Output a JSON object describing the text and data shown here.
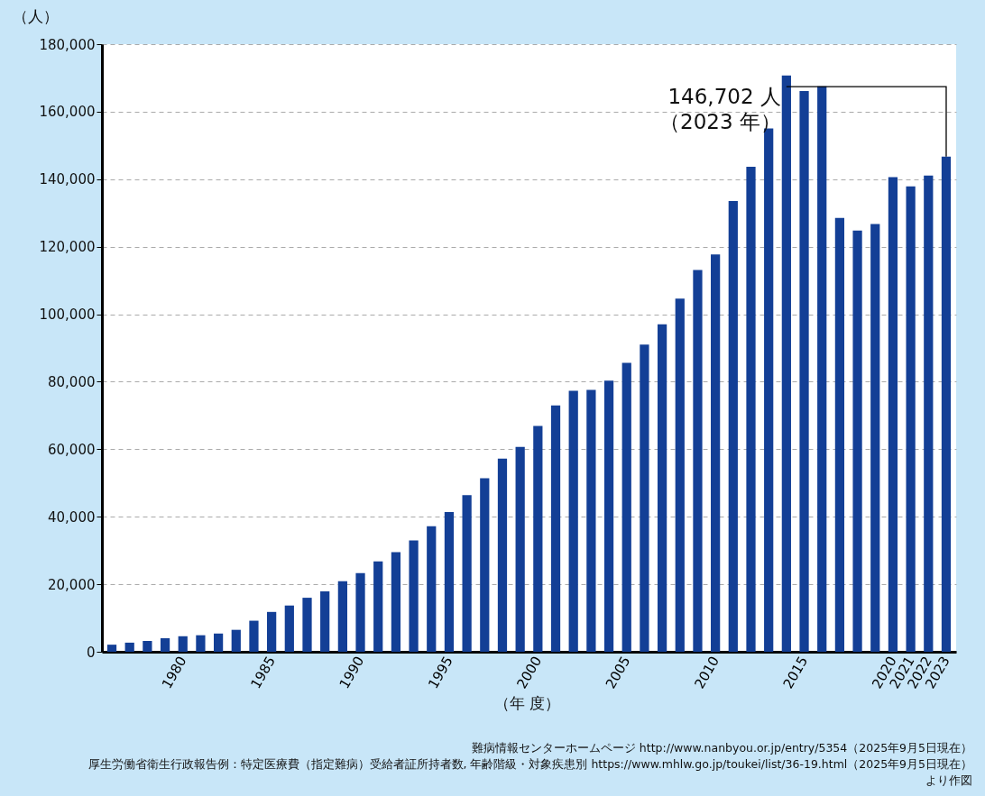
{
  "chart_data": {
    "type": "bar",
    "ylabel": "（人）",
    "xlabel": "（年 度）",
    "categories": [
      null,
      null,
      null,
      null,
      "1980",
      null,
      null,
      null,
      null,
      "1985",
      null,
      null,
      null,
      null,
      "1990",
      null,
      null,
      null,
      null,
      "1995",
      null,
      null,
      null,
      null,
      "2000",
      null,
      null,
      null,
      null,
      "2005",
      null,
      null,
      null,
      null,
      "2010",
      null,
      null,
      null,
      null,
      "2015",
      null,
      null,
      null,
      null,
      "2020",
      "2021",
      "2022",
      "2023"
    ],
    "values": [
      2100,
      2700,
      3200,
      4000,
      4600,
      4900,
      5400,
      6500,
      9200,
      11800,
      13700,
      16000,
      17900,
      20900,
      23300,
      26800,
      29500,
      33000,
      37200,
      41400,
      46400,
      51400,
      57200,
      60700,
      66900,
      73000,
      77300,
      77600,
      80300,
      85600,
      91000,
      97000,
      104600,
      113100,
      117700,
      133500,
      143700,
      155000,
      170700,
      166100,
      167500,
      128500,
      124800,
      126700,
      140600,
      137900,
      141100,
      146702
    ],
    "color": "#133f96",
    "ylim": [
      0,
      180000
    ],
    "yticks": [
      {
        "value": 0,
        "label": "0"
      },
      {
        "value": 20000,
        "label": "20,000"
      },
      {
        "value": 40000,
        "label": "40,000"
      },
      {
        "value": 60000,
        "label": "60,000"
      },
      {
        "value": 80000,
        "label": "80,000"
      },
      {
        "value": 100000,
        "label": "100,000"
      },
      {
        "value": 120000,
        "label": "120,000"
      },
      {
        "value": 140000,
        "label": "140,000"
      },
      {
        "value": 160000,
        "label": "160,000"
      },
      {
        "value": 180000,
        "label": "180,000"
      }
    ],
    "grid": "y",
    "annotations": [
      {
        "text": "146,702 人（2023 年）",
        "x": "2023",
        "y": 146702
      },
      "難病情報センターホームページ http://www.nanbyou.or.jp/entry/5354（2025年9月5日現在）",
      "厚生労働省衛生行政報告例：特定医療費（指定難病）受給者証所持者数, 年齢階級・対象疾患別 https://www.mhlw.go.jp/toukei/list/36-19.html（2025年9月5日現在）",
      "より作図"
    ]
  }
}
